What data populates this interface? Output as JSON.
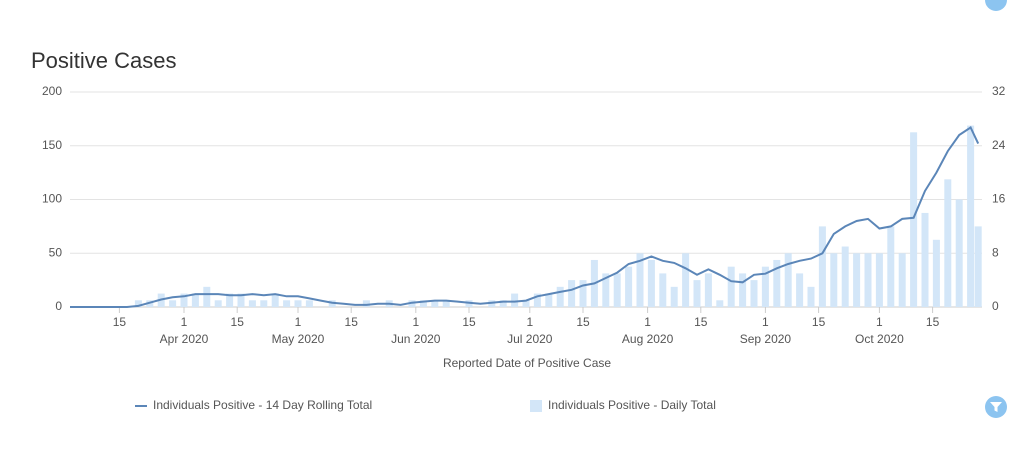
{
  "chart_data": {
    "type": "line-bar",
    "title": "Positive Cases",
    "x_label": "Reported Date of Positive Case",
    "x": [
      "2020-03-02",
      "2020-03-05",
      "2020-03-08",
      "2020-03-11",
      "2020-03-14",
      "2020-03-17",
      "2020-03-20",
      "2020-03-23",
      "2020-03-26",
      "2020-03-29",
      "2020-04-01",
      "2020-04-04",
      "2020-04-07",
      "2020-04-10",
      "2020-04-13",
      "2020-04-16",
      "2020-04-19",
      "2020-04-22",
      "2020-04-25",
      "2020-04-28",
      "2020-05-01",
      "2020-05-04",
      "2020-05-07",
      "2020-05-10",
      "2020-05-13",
      "2020-05-16",
      "2020-05-19",
      "2020-05-22",
      "2020-05-25",
      "2020-05-28",
      "2020-05-31",
      "2020-06-03",
      "2020-06-06",
      "2020-06-09",
      "2020-06-12",
      "2020-06-15",
      "2020-06-18",
      "2020-06-21",
      "2020-06-24",
      "2020-06-27",
      "2020-06-30",
      "2020-07-03",
      "2020-07-06",
      "2020-07-09",
      "2020-07-12",
      "2020-07-15",
      "2020-07-18",
      "2020-07-21",
      "2020-07-24",
      "2020-07-27",
      "2020-07-30",
      "2020-08-02",
      "2020-08-05",
      "2020-08-08",
      "2020-08-11",
      "2020-08-14",
      "2020-08-17",
      "2020-08-20",
      "2020-08-23",
      "2020-08-26",
      "2020-08-29",
      "2020-09-01",
      "2020-09-04",
      "2020-09-07",
      "2020-09-10",
      "2020-09-13",
      "2020-09-16",
      "2020-09-19",
      "2020-09-22",
      "2020-09-25",
      "2020-09-28",
      "2020-10-01",
      "2020-10-04",
      "2020-10-07",
      "2020-10-10",
      "2020-10-13",
      "2020-10-16",
      "2020-10-19",
      "2020-10-22",
      "2020-10-25",
      "2020-10-27"
    ],
    "series": [
      {
        "name": "Individuals Positive - 14 Day Rolling Total",
        "type": "line",
        "color": "#5b86b8",
        "values": [
          0,
          0,
          0,
          0,
          0,
          0,
          1,
          4,
          7,
          9,
          10,
          12,
          12,
          12,
          11,
          11,
          12,
          11,
          12,
          10,
          10,
          8,
          6,
          4,
          3,
          2,
          2,
          3,
          3,
          2,
          4,
          5,
          6,
          6,
          5,
          4,
          3,
          4,
          5,
          5,
          6,
          10,
          12,
          14,
          16,
          20,
          22,
          27,
          32,
          40,
          43,
          47,
          43,
          41,
          36,
          30,
          35,
          30,
          24,
          23,
          30,
          31,
          36,
          40,
          43,
          45,
          50,
          68,
          75,
          80,
          82,
          73,
          75,
          82,
          83,
          108,
          125,
          145,
          160,
          167,
          152
        ]
      },
      {
        "name": "Individuals Positive - Daily Total",
        "type": "bar",
        "axis": "y2",
        "color": "#d3e6f8",
        "values": [
          0,
          0,
          0,
          0,
          0,
          0,
          1,
          1,
          2,
          1,
          2,
          2,
          3,
          1,
          2,
          2,
          1,
          1,
          2,
          1,
          1,
          1,
          0,
          1,
          0,
          0,
          1,
          0,
          1,
          0,
          1,
          1,
          1,
          1,
          0,
          1,
          0,
          1,
          1,
          2,
          1,
          2,
          2,
          3,
          4,
          4,
          7,
          5,
          5,
          6,
          8,
          7,
          5,
          3,
          8,
          4,
          5,
          1,
          6,
          5,
          4,
          6,
          7,
          8,
          5,
          3,
          12,
          8,
          9,
          8,
          8,
          8,
          12,
          8,
          26,
          14,
          10,
          19,
          16,
          27,
          12
        ]
      }
    ],
    "xlim": [
      "2020-03-02",
      "2020-10-28"
    ],
    "xticks": [
      {
        "value": "2020-03-15",
        "label": "15"
      },
      {
        "value": "2020-04-01",
        "label": "1",
        "sublabel": "Apr 2020"
      },
      {
        "value": "2020-04-15",
        "label": "15"
      },
      {
        "value": "2020-05-01",
        "label": "1",
        "sublabel": "May 2020"
      },
      {
        "value": "2020-05-15",
        "label": "15"
      },
      {
        "value": "2020-06-01",
        "label": "1",
        "sublabel": "Jun 2020"
      },
      {
        "value": "2020-06-15",
        "label": "15"
      },
      {
        "value": "2020-07-01",
        "label": "1",
        "sublabel": "Jul 2020"
      },
      {
        "value": "2020-07-15",
        "label": "15"
      },
      {
        "value": "2020-08-01",
        "label": "1",
        "sublabel": "Aug 2020"
      },
      {
        "value": "2020-08-15",
        "label": "15"
      },
      {
        "value": "2020-09-01",
        "label": "1",
        "sublabel": "Sep 2020"
      },
      {
        "value": "2020-09-15",
        "label": "15"
      },
      {
        "value": "2020-10-01",
        "label": "1",
        "sublabel": "Oct 2020"
      },
      {
        "value": "2020-10-15",
        "label": "15"
      }
    ],
    "ylim": [
      0,
      200
    ],
    "yticks": [
      0,
      50,
      100,
      150,
      200
    ],
    "y2lim": [
      0,
      32
    ],
    "y2ticks": [
      0,
      8,
      16,
      24,
      32
    ],
    "grid": true,
    "legend": "bottom"
  }
}
